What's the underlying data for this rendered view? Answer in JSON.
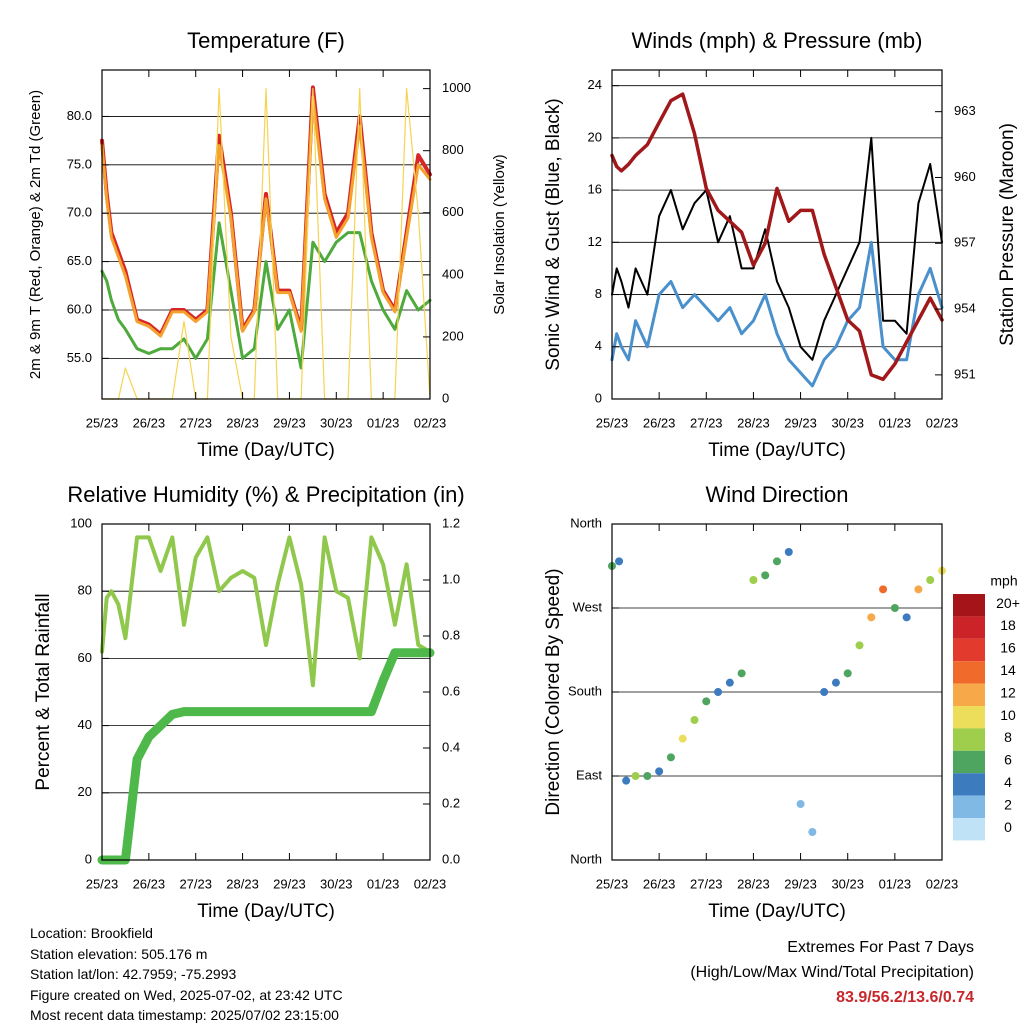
{
  "chart_data": [
    {
      "id": "temperature",
      "type": "line",
      "title": "Temperature (F)",
      "xlabel": "Time (Day/UTC)",
      "ylabel": "2m & 9m T (Red, Orange) & 2m Td (Green)",
      "ylabel_right": "Solar Insolation (Yellow)",
      "x_ticks": [
        "25/23",
        "26/23",
        "27/23",
        "28/23",
        "29/23",
        "30/23",
        "01/23",
        "02/23"
      ],
      "y_ticks": [
        "55.0",
        "60.0",
        "65.0",
        "70.0",
        "75.0",
        "80.0"
      ],
      "y_ticks_right": [
        "0",
        "200",
        "400",
        "600",
        "800",
        "1000"
      ],
      "ylim": [
        50.8,
        84.8
      ],
      "ylim_right": [
        0,
        1060
      ],
      "x": [
        0,
        0.1,
        0.2,
        0.35,
        0.5,
        0.75,
        1.0,
        1.25,
        1.5,
        1.75,
        2.0,
        2.25,
        2.5,
        2.75,
        3.0,
        3.25,
        3.5,
        3.75,
        4.0,
        4.25,
        4.5,
        4.75,
        5.0,
        5.25,
        5.5,
        5.75,
        6.0,
        6.25,
        6.5,
        6.75,
        7.0
      ],
      "series": [
        {
          "name": "2m T",
          "color": "#d62728",
          "values": [
            77.5,
            72,
            68,
            66,
            64,
            59,
            58.5,
            57.5,
            60,
            60,
            59,
            60,
            78,
            70,
            58,
            60,
            72,
            62,
            62,
            58,
            83,
            72,
            68,
            70,
            80,
            68,
            62,
            60,
            68,
            76,
            74
          ]
        },
        {
          "name": "9m T",
          "color": "#f4a12d",
          "values": [
            77,
            71.5,
            67.5,
            65.5,
            63.5,
            58.8,
            58.3,
            57.3,
            59.8,
            59.8,
            58.8,
            59.8,
            77,
            69.5,
            57.8,
            59.8,
            71.5,
            61.8,
            61.8,
            57.8,
            82,
            71.5,
            67.5,
            69.5,
            79,
            67.5,
            61.8,
            59.8,
            67.5,
            75,
            73.5
          ]
        },
        {
          "name": "2m Td",
          "color": "#4eaa3c",
          "values": [
            64,
            63,
            61,
            59,
            58,
            56,
            55.5,
            56,
            56,
            57,
            55,
            57,
            69,
            62,
            55,
            56,
            65,
            58,
            60,
            54,
            67,
            65,
            67,
            68,
            68,
            63,
            60,
            58,
            62,
            60,
            61
          ]
        },
        {
          "name": "Solar",
          "color": "#f5d452",
          "axis": "right",
          "values": [
            0,
            0,
            0,
            0,
            100,
            0,
            0,
            0,
            0,
            250,
            0,
            0,
            1000,
            200,
            0,
            0,
            1000,
            0,
            0,
            0,
            1000,
            0,
            0,
            0,
            1000,
            0,
            0,
            0,
            1000,
            600,
            0
          ]
        }
      ]
    },
    {
      "id": "winds",
      "type": "line",
      "title": "Winds (mph) & Pressure (mb)",
      "xlabel": "Time (Day/UTC)",
      "ylabel": "Sonic Wind & Gust (Blue, Black)",
      "ylabel_right": "Station Pressure (Maroon)",
      "x_ticks": [
        "25/23",
        "26/23",
        "27/23",
        "28/23",
        "29/23",
        "30/23",
        "01/23",
        "02/23"
      ],
      "y_ticks": [
        "0",
        "4",
        "8",
        "12",
        "16",
        "20",
        "24"
      ],
      "y_ticks_right": [
        "951",
        "954",
        "957",
        "960",
        "963"
      ],
      "ylim": [
        0,
        25.2
      ],
      "ylim_right": [
        949.9,
        964.9
      ],
      "x": [
        0,
        0.1,
        0.2,
        0.35,
        0.5,
        0.75,
        1.0,
        1.25,
        1.5,
        1.75,
        2.0,
        2.25,
        2.5,
        2.75,
        3.0,
        3.25,
        3.5,
        3.75,
        4.0,
        4.25,
        4.5,
        4.75,
        5.0,
        5.25,
        5.5,
        5.75,
        6.0,
        6.25,
        6.5,
        6.75,
        7.0
      ],
      "series": [
        {
          "name": "Sonic Wind",
          "color": "#4a90cc",
          "values": [
            3,
            5,
            4,
            3,
            6,
            4,
            8,
            9,
            7,
            8,
            7,
            6,
            7,
            5,
            6,
            8,
            5,
            3,
            2,
            1,
            3,
            4,
            6,
            7,
            12,
            4,
            3,
            3,
            8,
            10,
            7
          ]
        },
        {
          "name": "Gust",
          "color": "#000000",
          "values": [
            8,
            10,
            9,
            7,
            10,
            8,
            14,
            16,
            13,
            15,
            16,
            12,
            14,
            10,
            10,
            13,
            9,
            7,
            4,
            3,
            6,
            8,
            10,
            12,
            20,
            6,
            6,
            5,
            15,
            18,
            12
          ]
        },
        {
          "name": "Station Pressure",
          "color": "#a1181a",
          "axis": "right",
          "values": [
            961,
            960.5,
            960.3,
            960.6,
            961,
            961.5,
            962.5,
            963.5,
            963.8,
            962,
            959.5,
            958.5,
            958,
            957.5,
            956,
            957,
            959.5,
            958,
            958.5,
            958.5,
            956.5,
            955,
            953.5,
            953,
            951,
            950.8,
            951.5,
            952.5,
            953.5,
            954.5,
            953.5
          ]
        }
      ]
    },
    {
      "id": "humidity",
      "type": "line",
      "title": "Relative Humidity (%) & Precipitation (in)",
      "xlabel": "Time (Day/UTC)",
      "ylabel": "Percent & Total Rainfall",
      "x_ticks": [
        "25/23",
        "26/23",
        "27/23",
        "28/23",
        "29/23",
        "30/23",
        "01/23",
        "02/23"
      ],
      "y_ticks": [
        "0",
        "20",
        "40",
        "60",
        "80",
        "100"
      ],
      "y_ticks_right": [
        "0.0",
        "0.2",
        "0.4",
        "0.6",
        "0.8",
        "1.0",
        "1.2"
      ],
      "ylim": [
        0,
        100
      ],
      "ylim_right": [
        0,
        1.2
      ],
      "x": [
        0,
        0.1,
        0.2,
        0.35,
        0.5,
        0.75,
        1.0,
        1.25,
        1.5,
        1.75,
        2.0,
        2.25,
        2.5,
        2.75,
        3.0,
        3.25,
        3.5,
        3.75,
        4.0,
        4.25,
        4.5,
        4.75,
        5.0,
        5.25,
        5.5,
        5.75,
        6.0,
        6.25,
        6.5,
        6.75,
        7.0
      ],
      "series": [
        {
          "name": "Relative Humidity",
          "color": "#8fc84c",
          "values": [
            62,
            78,
            80,
            76,
            66,
            96,
            96,
            86,
            96,
            70,
            90,
            96,
            80,
            84,
            86,
            84,
            64,
            82,
            96,
            82,
            52,
            96,
            80,
            78,
            60,
            96,
            88,
            70,
            88,
            64,
            62
          ]
        },
        {
          "name": "Total Rainfall",
          "color": "#4eb84a",
          "axis": "right",
          "values": [
            0,
            0,
            0,
            0,
            0,
            0.36,
            0.44,
            0.48,
            0.52,
            0.53,
            0.53,
            0.53,
            0.53,
            0.53,
            0.53,
            0.53,
            0.53,
            0.53,
            0.53,
            0.53,
            0.53,
            0.53,
            0.53,
            0.53,
            0.53,
            0.53,
            0.64,
            0.74,
            0.74,
            0.74,
            0.74
          ]
        }
      ]
    },
    {
      "id": "direction",
      "type": "scatter",
      "title": "Wind Direction",
      "xlabel": "Time (Day/UTC)",
      "ylabel": "Direction (Colored By Speed)",
      "x_ticks": [
        "25/23",
        "26/23",
        "27/23",
        "28/23",
        "29/23",
        "30/23",
        "01/23",
        "02/23"
      ],
      "y_ticks": [
        "North",
        "East",
        "South",
        "West",
        "North"
      ],
      "ylim": [
        0,
        360
      ],
      "x": [
        0,
        0.15,
        0.3,
        0.5,
        0.75,
        1.0,
        1.25,
        1.5,
        1.75,
        2.0,
        2.25,
        2.5,
        2.75,
        3.0,
        3.25,
        3.5,
        3.75,
        4.0,
        4.25,
        4.5,
        4.75,
        5.0,
        5.25,
        5.5,
        5.75,
        6.0,
        6.25,
        6.5,
        6.75,
        7.0
      ],
      "values": [
        315,
        320,
        85,
        90,
        90,
        95,
        110,
        130,
        150,
        170,
        180,
        190,
        200,
        300,
        305,
        320,
        330,
        60,
        30,
        180,
        190,
        200,
        230,
        260,
        290,
        270,
        260,
        290,
        300,
        310
      ],
      "speed": [
        6,
        4,
        4,
        8,
        6,
        4,
        6,
        10,
        8,
        6,
        4,
        4,
        6,
        8,
        6,
        6,
        4,
        2,
        2,
        4,
        4,
        6,
        8,
        12,
        14,
        6,
        4,
        12,
        8,
        10
      ],
      "legend_title": "mph",
      "legend_labels": [
        "20+",
        "18",
        "16",
        "14",
        "12",
        "10",
        "8",
        "6",
        "4",
        "2",
        "0"
      ],
      "legend_colors": [
        "#a51419",
        "#cb2327",
        "#e23a2d",
        "#f06a2b",
        "#f7a949",
        "#ecdd5a",
        "#9fcd4c",
        "#4ea55f",
        "#3d7bbf",
        "#7fb9e4",
        "#bfe2f6"
      ]
    }
  ],
  "footer": {
    "location": "Location: Brookfield",
    "elevation": "Station elevation: 505.176 m",
    "latlon": "Station lat/lon: 42.7959; -75.2993",
    "created": "Figure created on Wed, 2025-07-02, at 23:42 UTC",
    "recent": "Most recent data timestamp: 2025/07/02 23:15:00"
  },
  "extremes": {
    "title": "Extremes For Past 7 Days",
    "subtitle": "(High/Low/Max Wind/Total Precipitation)",
    "values": "83.9/56.2/13.6/0.74"
  }
}
